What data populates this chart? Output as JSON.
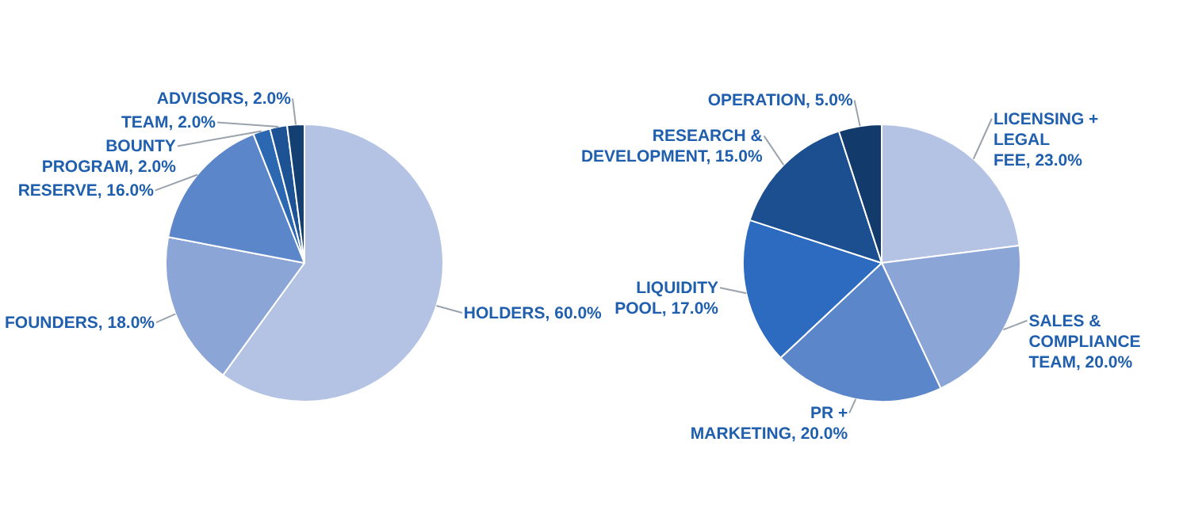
{
  "chart_data": [
    {
      "type": "pie",
      "categories": [
        "HOLDERS",
        "FOUNDERS",
        "RESERVE",
        "BOUNTY PROGRAM",
        "TEAM",
        "ADVISORS"
      ],
      "values": [
        60,
        18,
        16,
        2,
        2,
        2
      ],
      "value_labels": [
        "60.0%",
        "18.0%",
        "16.0%",
        "2.0%",
        "2.0%",
        "2.0%"
      ],
      "colors": [
        "#b4c3e3",
        "#8ba6d6",
        "#5b86c9",
        "#2c68b2",
        "#1d5294",
        "#133f73"
      ],
      "legend": false
    },
    {
      "type": "pie",
      "categories": [
        "LICENSING + LEGAL FEE",
        "SALES & COMPLIANCE TEAM",
        "PR + MARKETING",
        "LIQUIDITY POOL",
        "RESEARCH & DEVELOPMENT",
        "OPERATION"
      ],
      "values": [
        23,
        20,
        20,
        17,
        15,
        5
      ],
      "value_labels": [
        "23.0%",
        "20.0%",
        "20.0%",
        "17.0%",
        "15.0%",
        "5.0%"
      ],
      "colors": [
        "#b4c3e3",
        "#8ba6d6",
        "#5b86c9",
        "#2c6bbf",
        "#1b4f8f",
        "#123a6a"
      ],
      "legend": false
    }
  ]
}
